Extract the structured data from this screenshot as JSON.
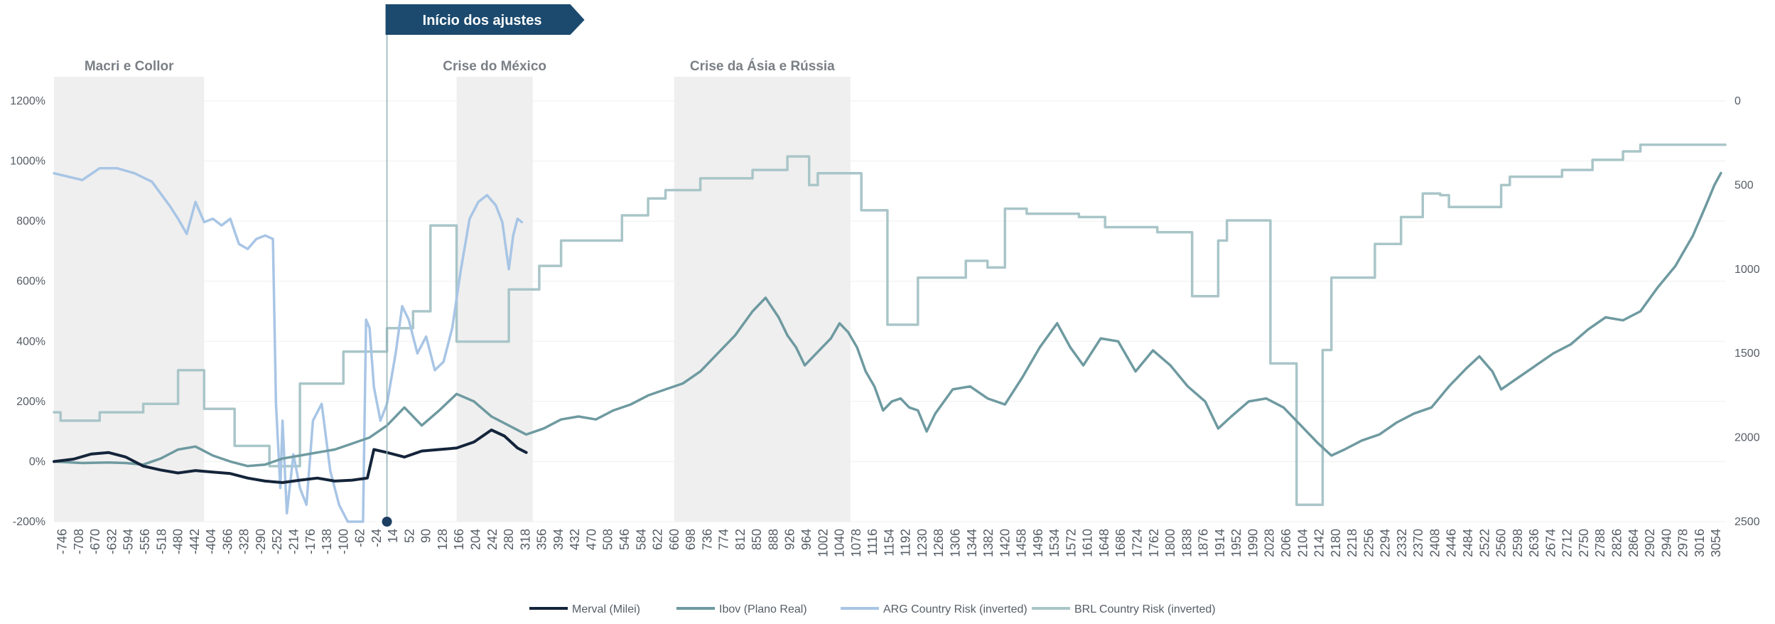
{
  "chart_data": {
    "type": "line",
    "title": "",
    "banner": "Início dos ajustes",
    "x_axis": {
      "min": -765,
      "max": 3075,
      "tick_start": -746,
      "tick_step": 38,
      "tick_end": 3054
    },
    "y_left": {
      "min": -200,
      "max": 1200,
      "ticks": [
        -200,
        0,
        200,
        400,
        600,
        800,
        1000,
        1200
      ],
      "tick_labels": [
        "-200%",
        "0%",
        "200%",
        "400%",
        "600%",
        "800%",
        "1000%",
        "1200%"
      ]
    },
    "y_right": {
      "min": 0,
      "max": 2500,
      "inverted": true,
      "ticks": [
        0,
        500,
        1000,
        1500,
        2000,
        2500
      ],
      "tick_labels": [
        "0",
        "500",
        "1000",
        "1500",
        "2000",
        "2500"
      ]
    },
    "event_x": 0,
    "shaded_regions": [
      {
        "label": "Macri e Collor",
        "from": -765,
        "to": -420
      },
      {
        "label": "Crise do México",
        "from": 160,
        "to": 335
      },
      {
        "label": "Crise da Ásia e Rússia",
        "from": 660,
        "to": 1065
      }
    ],
    "legend": {
      "placement": "bottom-center"
    },
    "series": [
      {
        "name": "Merval (Milei)",
        "axis": "left",
        "color": "#14243a",
        "points": [
          [
            -765,
            0
          ],
          [
            -720,
            8
          ],
          [
            -680,
            25
          ],
          [
            -640,
            30
          ],
          [
            -600,
            15
          ],
          [
            -560,
            -15
          ],
          [
            -520,
            -28
          ],
          [
            -480,
            -38
          ],
          [
            -440,
            -30
          ],
          [
            -400,
            -35
          ],
          [
            -360,
            -40
          ],
          [
            -320,
            -55
          ],
          [
            -280,
            -65
          ],
          [
            -240,
            -70
          ],
          [
            -200,
            -62
          ],
          [
            -160,
            -55
          ],
          [
            -120,
            -65
          ],
          [
            -80,
            -62
          ],
          [
            -45,
            -55
          ],
          [
            -30,
            40
          ],
          [
            0,
            30
          ],
          [
            40,
            15
          ],
          [
            80,
            35
          ],
          [
            120,
            40
          ],
          [
            160,
            45
          ],
          [
            200,
            65
          ],
          [
            240,
            105
          ],
          [
            270,
            85
          ],
          [
            300,
            45
          ],
          [
            320,
            30
          ]
        ]
      },
      {
        "name": "Ibov (Plano Real)",
        "axis": "left",
        "color": "#6e9aa0",
        "points": [
          [
            -765,
            0
          ],
          [
            -700,
            -5
          ],
          [
            -640,
            -3
          ],
          [
            -600,
            -5
          ],
          [
            -560,
            -10
          ],
          [
            -520,
            10
          ],
          [
            -480,
            40
          ],
          [
            -440,
            50
          ],
          [
            -400,
            20
          ],
          [
            -360,
            0
          ],
          [
            -320,
            -15
          ],
          [
            -280,
            -10
          ],
          [
            -240,
            10
          ],
          [
            -200,
            20
          ],
          [
            -160,
            30
          ],
          [
            -120,
            40
          ],
          [
            -80,
            60
          ],
          [
            -40,
            80
          ],
          [
            0,
            120
          ],
          [
            40,
            180
          ],
          [
            80,
            120
          ],
          [
            120,
            170
          ],
          [
            160,
            225
          ],
          [
            200,
            200
          ],
          [
            240,
            150
          ],
          [
            280,
            120
          ],
          [
            320,
            90
          ],
          [
            360,
            110
          ],
          [
            400,
            140
          ],
          [
            440,
            150
          ],
          [
            480,
            140
          ],
          [
            520,
            170
          ],
          [
            560,
            190
          ],
          [
            600,
            220
          ],
          [
            640,
            240
          ],
          [
            680,
            260
          ],
          [
            720,
            300
          ],
          [
            760,
            360
          ],
          [
            800,
            420
          ],
          [
            840,
            500
          ],
          [
            870,
            545
          ],
          [
            900,
            480
          ],
          [
            920,
            420
          ],
          [
            940,
            380
          ],
          [
            960,
            320
          ],
          [
            980,
            350
          ],
          [
            1000,
            380
          ],
          [
            1020,
            410
          ],
          [
            1040,
            460
          ],
          [
            1060,
            430
          ],
          [
            1080,
            380
          ],
          [
            1100,
            300
          ],
          [
            1120,
            250
          ],
          [
            1140,
            170
          ],
          [
            1160,
            200
          ],
          [
            1180,
            210
          ],
          [
            1200,
            180
          ],
          [
            1220,
            170
          ],
          [
            1240,
            100
          ],
          [
            1260,
            160
          ],
          [
            1300,
            240
          ],
          [
            1340,
            250
          ],
          [
            1380,
            210
          ],
          [
            1420,
            190
          ],
          [
            1460,
            280
          ],
          [
            1500,
            380
          ],
          [
            1540,
            460
          ],
          [
            1570,
            380
          ],
          [
            1600,
            320
          ],
          [
            1640,
            410
          ],
          [
            1680,
            400
          ],
          [
            1720,
            300
          ],
          [
            1760,
            370
          ],
          [
            1800,
            320
          ],
          [
            1840,
            250
          ],
          [
            1880,
            200
          ],
          [
            1910,
            110
          ],
          [
            1940,
            150
          ],
          [
            1980,
            200
          ],
          [
            2020,
            210
          ],
          [
            2060,
            180
          ],
          [
            2100,
            120
          ],
          [
            2140,
            60
          ],
          [
            2170,
            20
          ],
          [
            2200,
            40
          ],
          [
            2240,
            70
          ],
          [
            2280,
            90
          ],
          [
            2320,
            130
          ],
          [
            2360,
            160
          ],
          [
            2400,
            180
          ],
          [
            2440,
            250
          ],
          [
            2480,
            310
          ],
          [
            2510,
            350
          ],
          [
            2540,
            300
          ],
          [
            2560,
            240
          ],
          [
            2600,
            280
          ],
          [
            2640,
            320
          ],
          [
            2680,
            360
          ],
          [
            2720,
            390
          ],
          [
            2760,
            440
          ],
          [
            2800,
            480
          ],
          [
            2840,
            470
          ],
          [
            2880,
            500
          ],
          [
            2920,
            580
          ],
          [
            2960,
            650
          ],
          [
            3000,
            750
          ],
          [
            3030,
            850
          ],
          [
            3050,
            920
          ],
          [
            3065,
            960
          ]
        ]
      },
      {
        "name": "ARG Country Risk (inverted)",
        "axis": "right",
        "color": "#a8c5e5",
        "points": [
          [
            -765,
            430
          ],
          [
            -700,
            470
          ],
          [
            -660,
            400
          ],
          [
            -620,
            400
          ],
          [
            -580,
            430
          ],
          [
            -540,
            480
          ],
          [
            -500,
            620
          ],
          [
            -480,
            700
          ],
          [
            -460,
            790
          ],
          [
            -440,
            600
          ],
          [
            -420,
            720
          ],
          [
            -400,
            700
          ],
          [
            -380,
            740
          ],
          [
            -360,
            700
          ],
          [
            -340,
            850
          ],
          [
            -320,
            880
          ],
          [
            -300,
            820
          ],
          [
            -280,
            800
          ],
          [
            -262,
            820
          ],
          [
            -255,
            1800
          ],
          [
            -245,
            2300
          ],
          [
            -240,
            1900
          ],
          [
            -230,
            2450
          ],
          [
            -215,
            2100
          ],
          [
            -200,
            2300
          ],
          [
            -185,
            2400
          ],
          [
            -170,
            1900
          ],
          [
            -150,
            1800
          ],
          [
            -130,
            2200
          ],
          [
            -110,
            2400
          ],
          [
            -90,
            2500
          ],
          [
            -70,
            2500
          ],
          [
            -55,
            2500
          ],
          [
            -48,
            1300
          ],
          [
            -40,
            1350
          ],
          [
            -30,
            1700
          ],
          [
            -15,
            1900
          ],
          [
            0,
            1800
          ],
          [
            20,
            1500
          ],
          [
            35,
            1220
          ],
          [
            50,
            1300
          ],
          [
            70,
            1500
          ],
          [
            90,
            1400
          ],
          [
            110,
            1600
          ],
          [
            130,
            1550
          ],
          [
            150,
            1350
          ],
          [
            170,
            1000
          ],
          [
            190,
            700
          ],
          [
            210,
            600
          ],
          [
            230,
            560
          ],
          [
            250,
            620
          ],
          [
            265,
            720
          ],
          [
            280,
            1000
          ],
          [
            290,
            800
          ],
          [
            300,
            700
          ],
          [
            310,
            720
          ]
        ]
      },
      {
        "name": "BRL Country Risk (inverted)",
        "axis": "right",
        "color": "#a9c5c8",
        "points": [
          [
            -765,
            1850
          ],
          [
            -750,
            1850
          ],
          [
            -750,
            1900
          ],
          [
            -660,
            1900
          ],
          [
            -660,
            1850
          ],
          [
            -560,
            1850
          ],
          [
            -560,
            1800
          ],
          [
            -480,
            1800
          ],
          [
            -480,
            1600
          ],
          [
            -420,
            1600
          ],
          [
            -420,
            1830
          ],
          [
            -350,
            1830
          ],
          [
            -350,
            2050
          ],
          [
            -270,
            2050
          ],
          [
            -270,
            2170
          ],
          [
            -200,
            2170
          ],
          [
            -200,
            1680
          ],
          [
            -100,
            1680
          ],
          [
            -100,
            1490
          ],
          [
            0,
            1490
          ],
          [
            0,
            1350
          ],
          [
            60,
            1350
          ],
          [
            60,
            1250
          ],
          [
            100,
            1250
          ],
          [
            100,
            740
          ],
          [
            160,
            740
          ],
          [
            160,
            1430
          ],
          [
            280,
            1430
          ],
          [
            280,
            1120
          ],
          [
            350,
            1120
          ],
          [
            350,
            980
          ],
          [
            400,
            980
          ],
          [
            400,
            830
          ],
          [
            540,
            830
          ],
          [
            540,
            680
          ],
          [
            600,
            680
          ],
          [
            600,
            580
          ],
          [
            640,
            580
          ],
          [
            640,
            530
          ],
          [
            720,
            530
          ],
          [
            720,
            460
          ],
          [
            840,
            460
          ],
          [
            840,
            410
          ],
          [
            920,
            410
          ],
          [
            920,
            330
          ],
          [
            970,
            330
          ],
          [
            970,
            500
          ],
          [
            990,
            500
          ],
          [
            990,
            430
          ],
          [
            1090,
            430
          ],
          [
            1090,
            650
          ],
          [
            1150,
            650
          ],
          [
            1150,
            1330
          ],
          [
            1220,
            1330
          ],
          [
            1220,
            1050
          ],
          [
            1330,
            1050
          ],
          [
            1330,
            950
          ],
          [
            1380,
            950
          ],
          [
            1380,
            990
          ],
          [
            1420,
            990
          ],
          [
            1420,
            640
          ],
          [
            1470,
            640
          ],
          [
            1470,
            670
          ],
          [
            1590,
            670
          ],
          [
            1590,
            690
          ],
          [
            1650,
            690
          ],
          [
            1650,
            750
          ],
          [
            1770,
            750
          ],
          [
            1770,
            780
          ],
          [
            1850,
            780
          ],
          [
            1850,
            1160
          ],
          [
            1910,
            1160
          ],
          [
            1910,
            830
          ],
          [
            1930,
            830
          ],
          [
            1930,
            710
          ],
          [
            2030,
            710
          ],
          [
            2030,
            1560
          ],
          [
            2090,
            1560
          ],
          [
            2090,
            2400
          ],
          [
            2150,
            2400
          ],
          [
            2150,
            1480
          ],
          [
            2170,
            1480
          ],
          [
            2170,
            1050
          ],
          [
            2270,
            1050
          ],
          [
            2270,
            850
          ],
          [
            2330,
            850
          ],
          [
            2330,
            690
          ],
          [
            2380,
            690
          ],
          [
            2380,
            550
          ],
          [
            2420,
            550
          ],
          [
            2420,
            560
          ],
          [
            2440,
            560
          ],
          [
            2440,
            630
          ],
          [
            2560,
            630
          ],
          [
            2560,
            500
          ],
          [
            2580,
            500
          ],
          [
            2580,
            450
          ],
          [
            2700,
            450
          ],
          [
            2700,
            410
          ],
          [
            2770,
            410
          ],
          [
            2770,
            350
          ],
          [
            2840,
            350
          ],
          [
            2840,
            300
          ],
          [
            2880,
            300
          ],
          [
            2880,
            260
          ],
          [
            3075,
            260
          ]
        ]
      }
    ]
  }
}
